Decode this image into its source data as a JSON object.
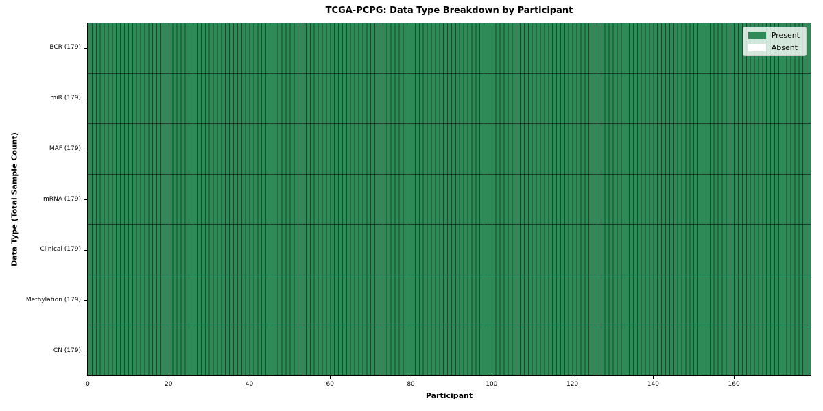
{
  "chart_data": {
    "type": "heatmap",
    "title": "TCGA-PCPG: Data Type Breakdown by Participant",
    "xlabel": "Participant",
    "ylabel": "Data Type (Total Sample Count)",
    "n_participants": 179,
    "x_axis": {
      "min": 0,
      "max": 179,
      "ticks": [
        0,
        20,
        40,
        60,
        80,
        100,
        120,
        140,
        160
      ]
    },
    "rows": [
      {
        "label": "BCR (179)",
        "data_type": "BCR",
        "total_samples": 179,
        "present_count": 179,
        "absent_count": 0
      },
      {
        "label": "miR (179)",
        "data_type": "miR",
        "total_samples": 179,
        "present_count": 179,
        "absent_count": 0
      },
      {
        "label": "MAF (179)",
        "data_type": "MAF",
        "total_samples": 179,
        "present_count": 179,
        "absent_count": 0
      },
      {
        "label": "mRNA (179)",
        "data_type": "mRNA",
        "total_samples": 179,
        "present_count": 179,
        "absent_count": 0
      },
      {
        "label": "Clinical (179)",
        "data_type": "Clinical",
        "total_samples": 179,
        "present_count": 179,
        "absent_count": 0
      },
      {
        "label": "Methylation (179)",
        "data_type": "Methylation",
        "total_samples": 179,
        "present_count": 179,
        "absent_count": 0
      },
      {
        "label": "CN (179)",
        "data_type": "CN",
        "total_samples": 179,
        "present_count": 179,
        "absent_count": 0
      }
    ],
    "legend": {
      "position": "upper right",
      "items": [
        {
          "label": "Present",
          "color": "#2e8b57"
        },
        {
          "label": "Absent",
          "color": "#ffffff"
        }
      ]
    },
    "colors": {
      "present": "#2e8b57",
      "absent": "#ffffff"
    },
    "grid": "per-cell borders",
    "all_cells_present": true
  }
}
